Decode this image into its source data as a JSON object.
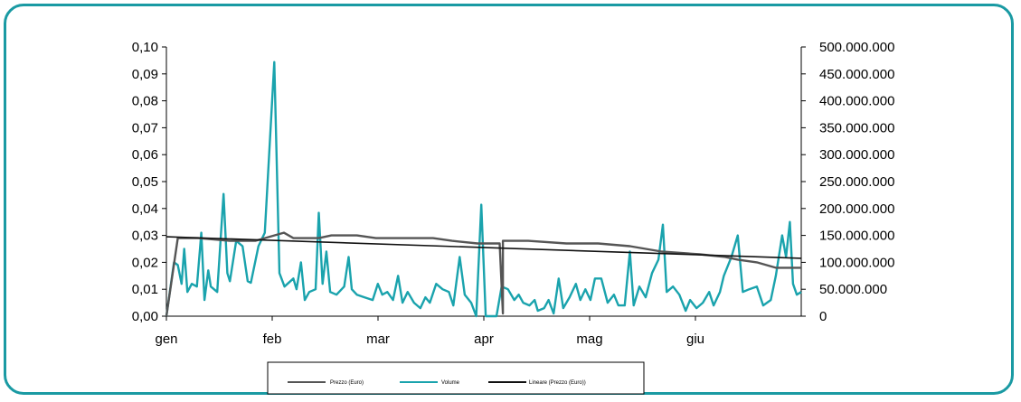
{
  "colors": {
    "frame": "#1a9aa3",
    "prezzo": "#555555",
    "volume": "#1aa3ad",
    "lineare": "#111111"
  },
  "chart_data": {
    "type": "line",
    "x_axis": {
      "categories": [
        "gen",
        "feb",
        "mar",
        "apr",
        "mag",
        "giu"
      ],
      "range": [
        0,
        1
      ]
    },
    "y_left": {
      "range": [
        0,
        0.1
      ],
      "ticks": [
        "0,00",
        "0,01",
        "0,02",
        "0,03",
        "0,04",
        "0,05",
        "0,06",
        "0,07",
        "0,08",
        "0,09",
        "0,10"
      ]
    },
    "y_right": {
      "range": [
        0,
        500000000
      ],
      "ticks": [
        "0",
        "50.000.000",
        "100.000.000",
        "150.000.000",
        "200.000.000",
        "250.000.000",
        "300.000.000",
        "350.000.000",
        "400.000.000",
        "450.000.000",
        "500.000.000"
      ]
    },
    "grid": false,
    "legend_position": "bottom",
    "series": [
      {
        "name": "Prezzo (Euro)",
        "axis": "left",
        "color": "#555555",
        "points": [
          [
            0,
            0.0
          ],
          [
            0.018,
            0.029
          ],
          [
            0.05,
            0.029
          ],
          [
            0.1,
            0.028
          ],
          [
            0.14,
            0.028
          ],
          [
            0.17,
            0.03
          ],
          [
            0.185,
            0.031
          ],
          [
            0.2,
            0.029
          ],
          [
            0.24,
            0.029
          ],
          [
            0.26,
            0.03
          ],
          [
            0.3,
            0.03
          ],
          [
            0.33,
            0.029
          ],
          [
            0.38,
            0.029
          ],
          [
            0.42,
            0.029
          ],
          [
            0.45,
            0.028
          ],
          [
            0.49,
            0.027
          ],
          [
            0.525,
            0.027
          ],
          [
            0.53,
            0.001
          ],
          [
            0.53,
            0.028
          ],
          [
            0.57,
            0.028
          ],
          [
            0.63,
            0.027
          ],
          [
            0.68,
            0.027
          ],
          [
            0.73,
            0.026
          ],
          [
            0.78,
            0.024
          ],
          [
            0.84,
            0.023
          ],
          [
            0.88,
            0.022
          ],
          [
            0.9,
            0.021
          ],
          [
            0.93,
            0.02
          ],
          [
            0.96,
            0.018
          ],
          [
            1.0,
            0.018
          ]
        ]
      },
      {
        "name": "Volume",
        "axis": "right",
        "color": "#1aa3ad",
        "points": [
          [
            0,
            0
          ],
          [
            0.012,
            100000000
          ],
          [
            0.018,
            95000000
          ],
          [
            0.024,
            60000000
          ],
          [
            0.028,
            125000000
          ],
          [
            0.033,
            45000000
          ],
          [
            0.04,
            60000000
          ],
          [
            0.048,
            55000000
          ],
          [
            0.055,
            155000000
          ],
          [
            0.06,
            30000000
          ],
          [
            0.066,
            85000000
          ],
          [
            0.07,
            55000000
          ],
          [
            0.08,
            45000000
          ],
          [
            0.09,
            227000000
          ],
          [
            0.096,
            80000000
          ],
          [
            0.1,
            65000000
          ],
          [
            0.11,
            140000000
          ],
          [
            0.12,
            130000000
          ],
          [
            0.128,
            65000000
          ],
          [
            0.133,
            62000000
          ],
          [
            0.145,
            130000000
          ],
          [
            0.155,
            155000000
          ],
          [
            0.17,
            472000000
          ],
          [
            0.178,
            80000000
          ],
          [
            0.186,
            55000000
          ],
          [
            0.2,
            70000000
          ],
          [
            0.205,
            50000000
          ],
          [
            0.212,
            100000000
          ],
          [
            0.218,
            30000000
          ],
          [
            0.225,
            45000000
          ],
          [
            0.235,
            50000000
          ],
          [
            0.24,
            192000000
          ],
          [
            0.246,
            60000000
          ],
          [
            0.252,
            120000000
          ],
          [
            0.258,
            45000000
          ],
          [
            0.268,
            40000000
          ],
          [
            0.28,
            55000000
          ],
          [
            0.287,
            110000000
          ],
          [
            0.292,
            50000000
          ],
          [
            0.3,
            40000000
          ],
          [
            0.312,
            35000000
          ],
          [
            0.325,
            30000000
          ],
          [
            0.333,
            60000000
          ],
          [
            0.34,
            40000000
          ],
          [
            0.348,
            45000000
          ],
          [
            0.357,
            30000000
          ],
          [
            0.365,
            75000000
          ],
          [
            0.372,
            25000000
          ],
          [
            0.38,
            45000000
          ],
          [
            0.39,
            25000000
          ],
          [
            0.4,
            15000000
          ],
          [
            0.408,
            35000000
          ],
          [
            0.415,
            25000000
          ],
          [
            0.425,
            60000000
          ],
          [
            0.435,
            50000000
          ],
          [
            0.445,
            45000000
          ],
          [
            0.452,
            20000000
          ],
          [
            0.462,
            110000000
          ],
          [
            0.47,
            40000000
          ],
          [
            0.48,
            25000000
          ],
          [
            0.488,
            0
          ],
          [
            0.496,
            207000000
          ],
          [
            0.503,
            0
          ],
          [
            0.52,
            0
          ],
          [
            0.528,
            55000000
          ],
          [
            0.538,
            50000000
          ],
          [
            0.548,
            30000000
          ],
          [
            0.555,
            40000000
          ],
          [
            0.562,
            25000000
          ],
          [
            0.572,
            20000000
          ],
          [
            0.58,
            30000000
          ],
          [
            0.585,
            10000000
          ],
          [
            0.595,
            15000000
          ],
          [
            0.602,
            30000000
          ],
          [
            0.61,
            5000000
          ],
          [
            0.618,
            70000000
          ],
          [
            0.625,
            15000000
          ],
          [
            0.635,
            35000000
          ],
          [
            0.645,
            60000000
          ],
          [
            0.652,
            30000000
          ],
          [
            0.66,
            50000000
          ],
          [
            0.668,
            30000000
          ],
          [
            0.675,
            70000000
          ],
          [
            0.685,
            70000000
          ],
          [
            0.695,
            25000000
          ],
          [
            0.705,
            40000000
          ],
          [
            0.712,
            20000000
          ],
          [
            0.722,
            20000000
          ],
          [
            0.73,
            120000000
          ],
          [
            0.736,
            20000000
          ],
          [
            0.745,
            55000000
          ],
          [
            0.755,
            35000000
          ],
          [
            0.765,
            80000000
          ],
          [
            0.775,
            105000000
          ],
          [
            0.782,
            170000000
          ],
          [
            0.788,
            45000000
          ],
          [
            0.798,
            55000000
          ],
          [
            0.808,
            40000000
          ],
          [
            0.818,
            10000000
          ],
          [
            0.825,
            30000000
          ],
          [
            0.835,
            15000000
          ],
          [
            0.845,
            25000000
          ],
          [
            0.855,
            45000000
          ],
          [
            0.862,
            20000000
          ],
          [
            0.872,
            45000000
          ],
          [
            0.878,
            75000000
          ],
          [
            0.89,
            110000000
          ],
          [
            0.9,
            150000000
          ],
          [
            0.908,
            45000000
          ],
          [
            0.918,
            50000000
          ],
          [
            0.93,
            55000000
          ],
          [
            0.94,
            20000000
          ],
          [
            0.952,
            30000000
          ],
          [
            0.96,
            75000000
          ],
          [
            0.97,
            150000000
          ],
          [
            0.976,
            110000000
          ],
          [
            0.982,
            175000000
          ],
          [
            0.987,
            60000000
          ],
          [
            0.993,
            40000000
          ],
          [
            1.0,
            45000000
          ]
        ]
      },
      {
        "name": "Lineare (Prezzo (Euro))",
        "axis": "left",
        "color": "#111111",
        "points": [
          [
            0,
            0.0295
          ],
          [
            1.0,
            0.0215
          ]
        ]
      }
    ]
  }
}
